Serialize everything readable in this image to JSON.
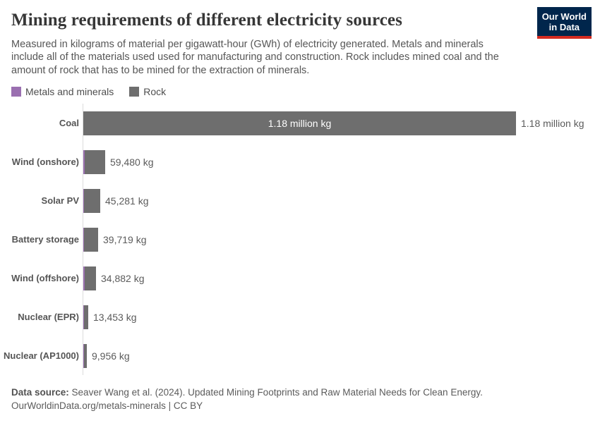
{
  "header": {
    "title": "Mining requirements of different electricity sources",
    "subtitle": "Measured in kilograms of material per gigawatt-hour (GWh) of electricity generated. Metals and minerals include all of the materials used used for manufacturing and construction. Rock includes mined coal and the amount of rock that has to be mined for the extraction of minerals.",
    "logo": {
      "line1": "Our World",
      "line2": "in Data",
      "bg_color": "#00264c",
      "stripe_color": "#d42b20"
    }
  },
  "legend": {
    "items": [
      {
        "label": "Metals and minerals",
        "color": "#9a6fb0"
      },
      {
        "label": "Rock",
        "color": "#6e6e6e"
      }
    ]
  },
  "chart_data": {
    "type": "bar",
    "orientation": "horizontal",
    "unit": "kg of material per GWh",
    "categories": [
      "Coal",
      "Wind (onshore)",
      "Solar PV",
      "Battery storage",
      "Wind (offshore)",
      "Nuclear (EPR)",
      "Nuclear (AP1000)"
    ],
    "total_values": [
      1180000,
      59480,
      45281,
      39719,
      34882,
      13453,
      9956
    ],
    "value_labels": [
      "1.18 million kg",
      "59,480 kg",
      "45,281 kg",
      "39,719 kg",
      "34,882 kg",
      "13,453 kg",
      "9,956 kg"
    ],
    "inside_bar_label": {
      "category": "Coal",
      "text": "1.18 million kg"
    },
    "series": [
      {
        "name": "Metals and minerals",
        "color": "#9a6fb0",
        "estimated_from_pixels": true,
        "values": [
          0,
          4800,
          1900,
          1200,
          2900,
          800,
          700
        ]
      },
      {
        "name": "Rock",
        "color": "#6e6e6e",
        "values": [
          1180000,
          54680,
          43381,
          38519,
          31982,
          12653,
          9256
        ]
      }
    ],
    "xlim": [
      0,
      1180000
    ],
    "grid": false,
    "legend_position": "top-left"
  },
  "footer": {
    "datasource_label": "Data source:",
    "datasource_text": "Seaver Wang et al. (2024). Updated Mining Footprints and Raw Material Needs for Clean Energy.",
    "attribution": "OurWorldinData.org/metals-minerals | CC BY"
  }
}
